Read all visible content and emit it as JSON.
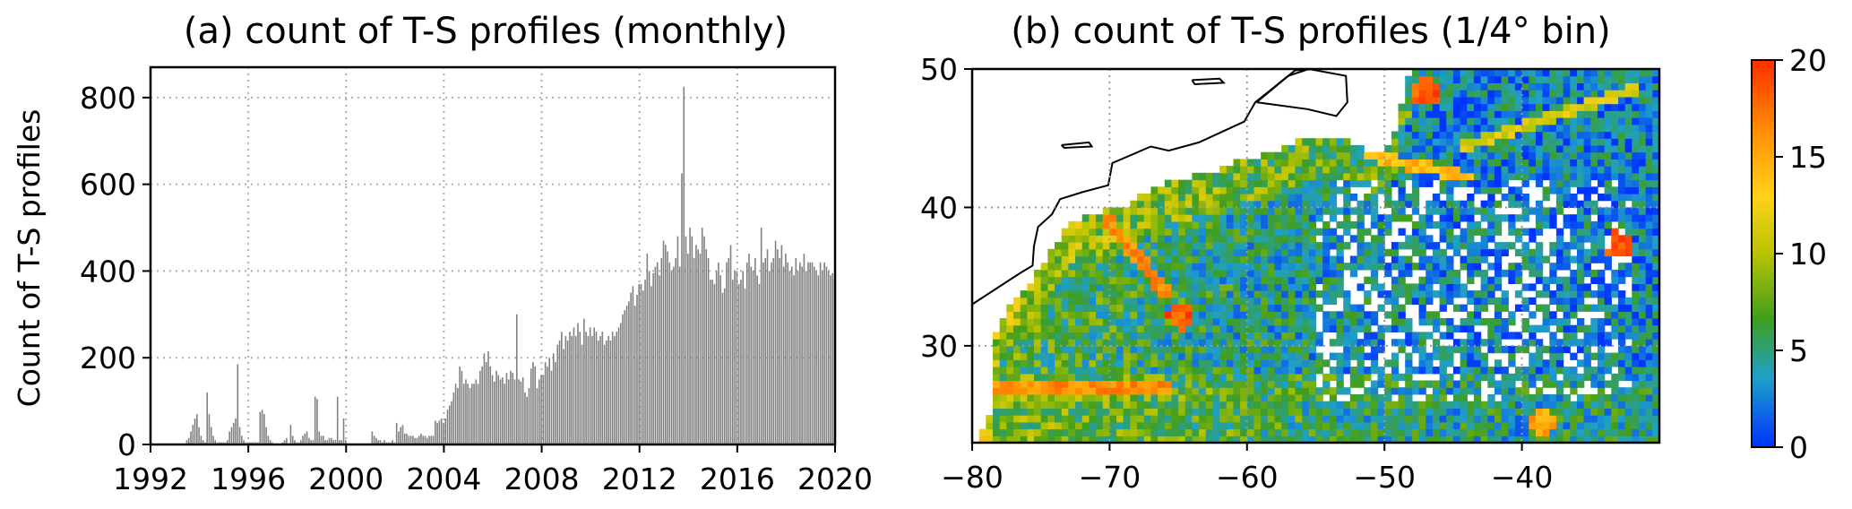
{
  "chart_data": [
    {
      "type": "bar",
      "title": "(a) count of T-S profiles (monthly)",
      "xlabel": "",
      "ylabel": "Count of T-S profiles",
      "xlim": [
        1992,
        2020
      ],
      "ylim": [
        0,
        870
      ],
      "xticks": [
        1992,
        1996,
        2000,
        2004,
        2008,
        2012,
        2016,
        2020
      ],
      "yticks": [
        0,
        200,
        400,
        600,
        800
      ],
      "grid": true,
      "bar_color": "#808080",
      "frequency": "monthly",
      "start": "1992-01",
      "values": [
        0,
        0,
        0,
        0,
        0,
        0,
        0,
        0,
        0,
        0,
        0,
        0,
        0,
        0,
        0,
        0,
        0,
        10,
        15,
        30,
        45,
        60,
        70,
        40,
        20,
        10,
        5,
        120,
        70,
        40,
        20,
        10,
        5,
        5,
        5,
        5,
        5,
        10,
        30,
        40,
        50,
        60,
        185,
        40,
        20,
        10,
        5,
        5,
        5,
        5,
        5,
        5,
        5,
        75,
        80,
        70,
        40,
        20,
        10,
        5,
        0,
        0,
        0,
        0,
        5,
        10,
        15,
        0,
        45,
        20,
        10,
        5,
        5,
        10,
        20,
        25,
        30,
        15,
        10,
        10,
        110,
        105,
        30,
        20,
        20,
        10,
        10,
        15,
        15,
        10,
        10,
        110,
        10,
        10,
        60,
        10,
        0,
        0,
        0,
        0,
        0,
        0,
        0,
        0,
        0,
        0,
        0,
        0,
        30,
        20,
        15,
        10,
        10,
        5,
        10,
        5,
        5,
        5,
        10,
        5,
        50,
        30,
        40,
        45,
        25,
        25,
        20,
        20,
        20,
        15,
        15,
        20,
        25,
        20,
        20,
        15,
        20,
        20,
        20,
        55,
        50,
        55,
        60,
        50,
        60,
        80,
        90,
        100,
        120,
        140,
        130,
        180,
        170,
        140,
        150,
        140,
        130,
        140,
        140,
        150,
        140,
        170,
        180,
        210,
        190,
        215,
        180,
        160,
        145,
        170,
        160,
        150,
        155,
        140,
        165,
        150,
        170,
        165,
        150,
        300,
        150,
        145,
        155,
        120,
        110,
        130,
        175,
        190,
        180,
        130,
        150,
        160,
        160,
        190,
        180,
        200,
        170,
        210,
        190,
        230,
        240,
        260,
        220,
        250,
        240,
        260,
        250,
        270,
        250,
        280,
        260,
        230,
        290,
        260,
        250,
        270,
        250,
        270,
        260,
        240,
        250,
        260,
        230,
        240,
        250,
        240,
        260,
        250,
        260,
        270,
        280,
        300,
        310,
        320,
        330,
        350,
        365,
        320,
        345,
        370,
        370,
        355,
        380,
        440,
        400,
        365,
        395,
        410,
        420,
        390,
        430,
        470,
        460,
        445,
        420,
        400,
        410,
        430,
        480,
        410,
        625,
        825,
        480,
        440,
        500,
        480,
        430,
        460,
        450,
        440,
        500,
        480,
        450,
        430,
        380,
        380,
        370,
        400,
        420,
        390,
        350,
        360,
        420,
        430,
        460,
        380,
        400,
        400,
        370,
        380,
        400,
        360,
        420,
        440,
        410,
        400,
        430,
        390,
        370,
        500,
        420,
        430,
        450,
        400,
        420,
        430,
        470,
        450,
        430,
        460,
        410,
        440,
        420,
        400,
        410,
        390,
        430,
        400,
        420,
        410,
        440,
        400,
        420,
        420,
        420,
        410,
        400,
        390,
        420,
        400,
        420,
        410,
        400,
        390,
        395,
        380
      ]
    },
    {
      "type": "heatmap",
      "title": "(b) count of T-S profiles (1/4° bin)",
      "xlabel": "",
      "ylabel": "",
      "xlim": [
        -80,
        -30
      ],
      "ylim": [
        23,
        50
      ],
      "xticks": [
        -80,
        -70,
        -60,
        -50,
        -40
      ],
      "yticks": [
        30,
        40,
        50
      ],
      "grid": true,
      "resolution": 0.25,
      "value_range": [
        0,
        20
      ],
      "colormap": [
        "#0033ff",
        "#1fa0c8",
        "#3f9e20",
        "#b9c400",
        "#ffd21a",
        "#ff8c00",
        "#ff2e00"
      ],
      "colorbar_ticks": [
        0,
        5,
        10,
        15,
        20
      ],
      "colorbar_label": "",
      "features": [
        {
          "kind": "ship-track",
          "from": [
            -78.5,
            26.8
          ],
          "to": [
            -66,
            26.9
          ],
          "level": 18
        },
        {
          "kind": "ship-track",
          "from": [
            -70.2,
            39.2
          ],
          "to": [
            -66,
            34
          ],
          "level": 18
        },
        {
          "kind": "ship-track",
          "from": [
            -51,
            43.8
          ],
          "to": [
            -44,
            42.2
          ],
          "level": 16
        },
        {
          "kind": "ship-track",
          "from": [
            -44,
            44.5
          ],
          "to": [
            -32,
            48.5
          ],
          "level": 13
        },
        {
          "kind": "hotspot",
          "lon": -64.8,
          "lat": 32.2,
          "level": 20
        },
        {
          "kind": "hotspot",
          "lon": -38.5,
          "lat": 24.5,
          "level": 17
        },
        {
          "kind": "hotspot",
          "lon": -33,
          "lat": 37.3,
          "level": 20
        },
        {
          "kind": "hotspot",
          "lon": -47,
          "lat": 48.3,
          "level": 20
        }
      ]
    }
  ]
}
